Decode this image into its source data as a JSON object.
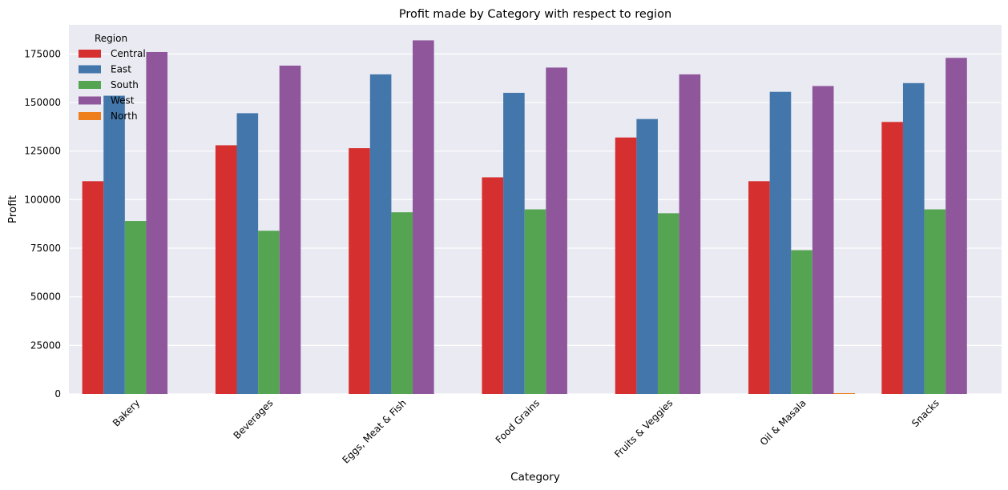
{
  "chart_data": {
    "type": "bar",
    "title": "Profit made by Category with respect to region",
    "xlabel": "Category",
    "ylabel": "Profit",
    "categories": [
      "Bakery",
      "Beverages",
      "Eggs, Meat & Fish",
      "Food Grains",
      "Fruits & Veggies",
      "Oil & Masala",
      "Snacks"
    ],
    "series": [
      {
        "name": "Central",
        "color": "#d62f2f",
        "values": [
          109500,
          128000,
          126500,
          111500,
          132000,
          109500,
          140000
        ]
      },
      {
        "name": "East",
        "color": "#4377ac",
        "values": [
          153500,
          144500,
          164500,
          155000,
          141500,
          155500,
          160000
        ]
      },
      {
        "name": "South",
        "color": "#55a452",
        "values": [
          89000,
          84000,
          93500,
          95000,
          93000,
          74000,
          95000
        ]
      },
      {
        "name": "West",
        "color": "#8f569c",
        "values": [
          176000,
          169000,
          182000,
          168000,
          164500,
          158500,
          173000
        ]
      },
      {
        "name": "North",
        "color": "#ef7e1d",
        "values": [
          0,
          0,
          0,
          0,
          0,
          401,
          0
        ]
      }
    ],
    "ylim": [
      0,
      190000
    ],
    "yticks": [
      0,
      25000,
      50000,
      75000,
      100000,
      125000,
      150000,
      175000
    ],
    "legend": {
      "title": "Region",
      "placement": "top-left"
    },
    "grid": true,
    "background": "#eaeaf2"
  }
}
